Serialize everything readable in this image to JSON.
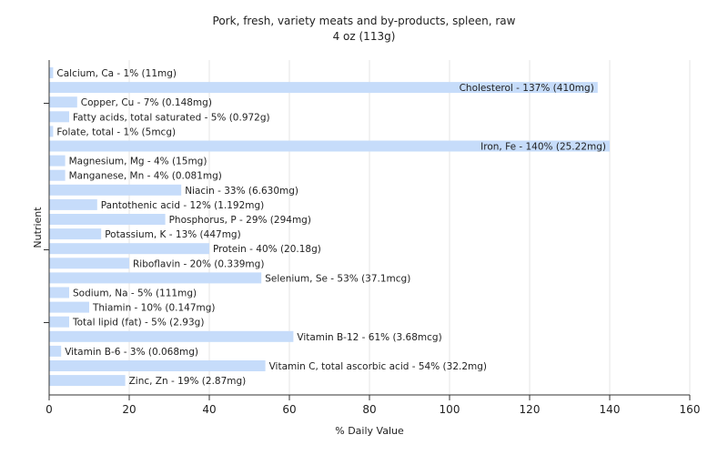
{
  "chart_data": {
    "type": "bar",
    "orientation": "horizontal",
    "title": "Pork, fresh, variety meats and by-products, spleen, raw",
    "subtitle": "4 oz (113g)",
    "xlabel": "% Daily Value",
    "ylabel": "Nutrient",
    "xlim": [
      0,
      160
    ],
    "xticks": [
      "0",
      "20",
      "40",
      "60",
      "80",
      "100",
      "120",
      "140",
      "160"
    ],
    "grid": true,
    "bar_color": "#c6dcfa",
    "categories": [
      "Calcium, Ca",
      "Cholesterol",
      "Copper, Cu",
      "Fatty acids, total saturated",
      "Folate, total",
      "Iron, Fe",
      "Magnesium, Mg",
      "Manganese, Mn",
      "Niacin",
      "Pantothenic acid",
      "Phosphorus, P",
      "Potassium, K",
      "Protein",
      "Riboflavin",
      "Selenium, Se",
      "Sodium, Na",
      "Thiamin",
      "Total lipid (fat)",
      "Vitamin B-12",
      "Vitamin B-6",
      "Vitamin C, total ascorbic acid",
      "Zinc, Zn"
    ],
    "values": [
      1,
      137,
      7,
      5,
      1,
      140,
      4,
      4,
      33,
      12,
      29,
      13,
      40,
      20,
      53,
      5,
      10,
      5,
      61,
      3,
      54,
      19
    ],
    "labels": [
      "Calcium, Ca - 1% (11mg)",
      "Cholesterol - 137% (410mg)",
      "Copper, Cu - 7% (0.148mg)",
      "Fatty acids, total saturated - 5% (0.972g)",
      "Folate, total - 1% (5mcg)",
      "Iron, Fe - 140% (25.22mg)",
      "Magnesium, Mg - 4% (15mg)",
      "Manganese, Mn - 4% (0.081mg)",
      "Niacin - 33% (6.630mg)",
      "Pantothenic acid - 12% (1.192mg)",
      "Phosphorus, P - 29% (294mg)",
      "Potassium, K - 13% (447mg)",
      "Protein - 40% (20.18g)",
      "Riboflavin - 20% (0.339mg)",
      "Selenium, Se - 53% (37.1mcg)",
      "Sodium, Na - 5% (111mg)",
      "Thiamin - 10% (0.147mg)",
      "Total lipid (fat) - 5% (2.93g)",
      "Vitamin B-12 - 61% (3.68mcg)",
      "Vitamin B-6 - 3% (0.068mg)",
      "Vitamin C, total ascorbic acid - 54% (32.2mg)",
      "Zinc, Zn - 19% (2.87mg)"
    ]
  }
}
